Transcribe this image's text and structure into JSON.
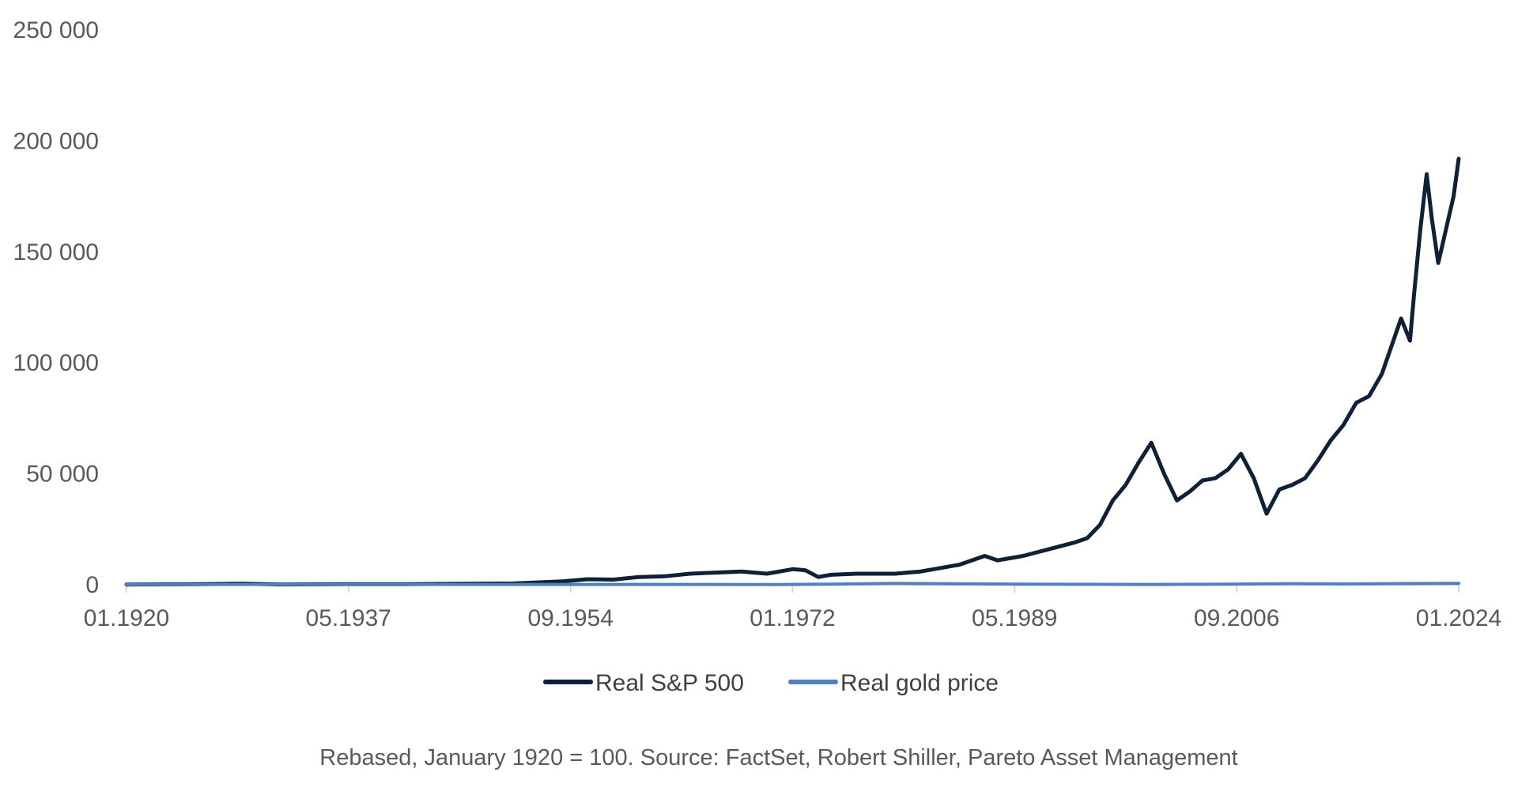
{
  "chart_data": {
    "type": "line",
    "title": "",
    "xlabel": "",
    "ylabel": "",
    "ylim": [
      0,
      250000
    ],
    "yticks": [
      "0",
      "50 000",
      "100 000",
      "150 000",
      "200 000",
      "250 000"
    ],
    "ytick_values": [
      0,
      50000,
      100000,
      150000,
      200000,
      250000
    ],
    "xlim": [
      1920.0,
      2024.0
    ],
    "xticks": [
      "01.1920",
      "05.1937",
      "09.1954",
      "01.1972",
      "05.1989",
      "09.2006",
      "01.2024"
    ],
    "xtick_values": [
      1920.0,
      1937.33,
      1954.67,
      1972.0,
      1989.33,
      2006.67,
      2024.0
    ],
    "grid": false,
    "legend_position": "bottom",
    "caption": "Rebased, January 1920 = 100. Source: FactSet, Robert Shiller, Pareto Asset Management",
    "series": [
      {
        "name": "Real S&P 500",
        "color": "#0f2137",
        "x": [
          1920,
          1925,
          1929,
          1932,
          1937,
          1942,
          1946,
          1950,
          1954,
          1956,
          1958,
          1960,
          1962,
          1964,
          1966,
          1968,
          1970,
          1972,
          1973,
          1974,
          1975,
          1977,
          1980,
          1982,
          1985,
          1987,
          1988,
          1990,
          1992,
          1994,
          1995,
          1996,
          1997,
          1998,
          1999,
          2000,
          2001,
          2002,
          2003,
          2004,
          2005,
          2006,
          2007,
          2008,
          2009,
          2010,
          2011,
          2012,
          2013,
          2014,
          2015,
          2016,
          2017,
          2018,
          2018.9,
          2019.5,
          2020.2,
          2020.5,
          2021,
          2021.5,
          2021.9,
          2022.4,
          2022.8,
          2023.2,
          2023.6,
          2024
        ],
        "y": [
          100,
          200,
          500,
          150,
          300,
          250,
          450,
          550,
          1500,
          2500,
          2300,
          3500,
          3800,
          5000,
          5500,
          6000,
          5000,
          7000,
          6500,
          3500,
          4500,
          5000,
          5000,
          6000,
          9000,
          13000,
          11000,
          13000,
          16000,
          19000,
          21000,
          27000,
          38000,
          45000,
          55000,
          64000,
          50000,
          38000,
          42000,
          47000,
          48000,
          52000,
          59000,
          48000,
          32000,
          43000,
          45000,
          48000,
          56000,
          65000,
          72000,
          82000,
          85000,
          95000,
          110000,
          120000,
          110000,
          130000,
          160000,
          185000,
          165000,
          145000,
          155000,
          165000,
          175000,
          192000
        ]
      },
      {
        "name": "Real gold price",
        "color": "#4f81bd",
        "x": [
          1920,
          1935,
          1950,
          1971,
          1975,
          1980,
          1990,
          2000,
          2006,
          2011,
          2015,
          2020,
          2024
        ],
        "y": [
          100,
          180,
          150,
          100,
          300,
          600,
          300,
          150,
          300,
          500,
          350,
          550,
          650
        ]
      }
    ]
  }
}
